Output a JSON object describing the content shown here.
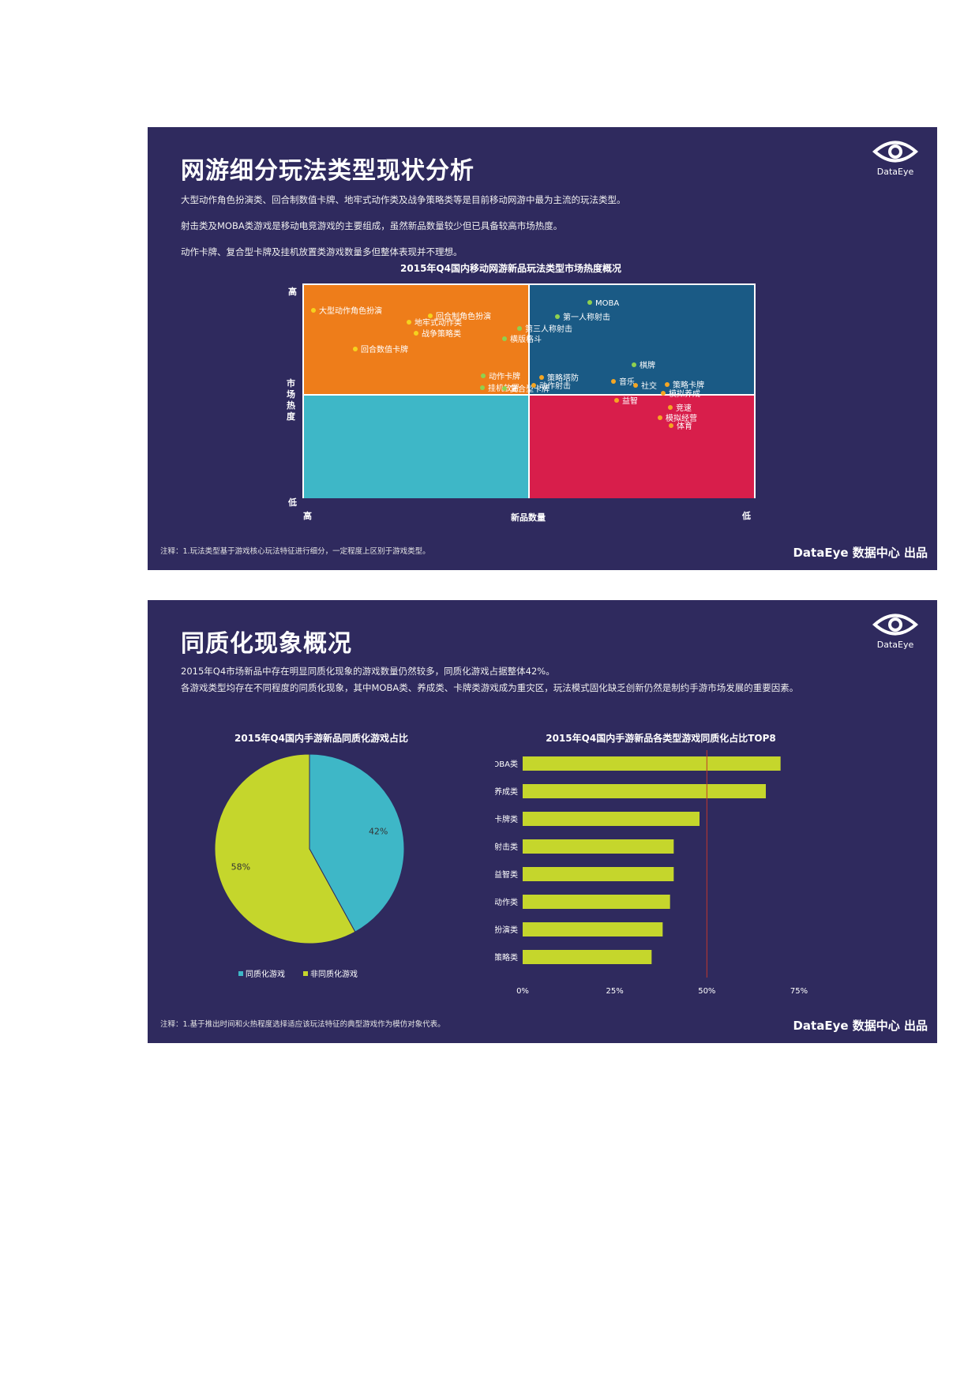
{
  "slide1": {
    "title": "网游细分玩法类型现状分析",
    "desc": [
      "大型动作角色扮演类、回合制数值卡牌、地牢式动作类及战争策略类等是目前移动网游中最为主流的玩法类型。",
      "射击类及MOBA类游戏是移动电竞游戏的主要组成，虽然新品数量较少但已具备较高市场热度。",
      "动作卡牌、复合型卡牌及挂机放置类游戏数量多但整体表现并不理想。"
    ],
    "logo_text": "DataEye",
    "chart_title": "2015年Q4国内移动网游新品玩法类型市场热度概况",
    "y_axis_label": "市场热度",
    "y_high": "高",
    "y_low": "低",
    "x_axis_label": "新品数量",
    "x_left": "高",
    "x_right": "低",
    "quadrant_colors": {
      "top_left": "#ee7d1a",
      "top_right": "#1a5a85",
      "bottom_left": "#3eb7c7",
      "bottom_right": "#d81e4b"
    },
    "points": [
      {
        "label": "大型动作角色扮演",
        "color": "#f5d21e"
      },
      {
        "label": "回合制角色扮演",
        "color": "#f5d21e"
      },
      {
        "label": "地牢式动作类",
        "color": "#f5d21e"
      },
      {
        "label": "战争策略类",
        "color": "#f5d21e"
      },
      {
        "label": "回合数值卡牌",
        "color": "#f5d21e"
      },
      {
        "label": "MOBA",
        "color": "#8fd14f"
      },
      {
        "label": "第一人称射击",
        "color": "#8fd14f"
      },
      {
        "label": "第三人称射击",
        "color": "#8fd14f"
      },
      {
        "label": "横版格斗",
        "color": "#8fd14f"
      },
      {
        "label": "动作卡牌",
        "color": "#8fd14f"
      },
      {
        "label": "挂机放置",
        "color": "#8fd14f"
      },
      {
        "label": "复合型卡牌",
        "color": "#8fd14f"
      },
      {
        "label": "棋牌",
        "color": "#8fd14f"
      },
      {
        "label": "策略塔防",
        "color": "#f5a623"
      },
      {
        "label": "动作射击",
        "color": "#f5a623"
      },
      {
        "label": "音乐",
        "color": "#f5a623"
      },
      {
        "label": "社交",
        "color": "#f5a623"
      },
      {
        "label": "策略卡牌",
        "color": "#f5a623"
      },
      {
        "label": "模拟养成",
        "color": "#f5a623"
      },
      {
        "label": "益智",
        "color": "#f5a623"
      },
      {
        "label": "竞速",
        "color": "#f5a623"
      },
      {
        "label": "模拟经营",
        "color": "#f5a623"
      },
      {
        "label": "体育",
        "color": "#f5a623"
      }
    ],
    "footnote": "注释：1.玩法类型基于游戏核心玩法特征进行细分，一定程度上区别于游戏类型。",
    "credit": "DataEye 数据中心 出品"
  },
  "slide2": {
    "title": "同质化现象概况",
    "desc": [
      "2015年Q4市场新品中存在明显同质化现象的游戏数量仍然较多，同质化游戏占据整体42%。",
      "各游戏类型均存在不同程度的同质化现象，其中MOBA类、养成类、卡牌类游戏成为重灾区，玩法模式固化缺乏创新仍然是制约手游市场发展的重要因素。"
    ],
    "logo_text": "DataEye",
    "footnote": "注释：1.基于推出时间和火热程度选择适应该玩法特征的典型游戏作为模仿对象代表。",
    "credit": "DataEye 数据中心 出品"
  },
  "chart_data": [
    {
      "type": "pie",
      "title": "2015年Q4国内手游新品同质化游戏占比",
      "slices": [
        {
          "name": "同质化游戏",
          "value": 42,
          "label": "42%",
          "color": "#3eb7c7"
        },
        {
          "name": "非同质化游戏",
          "value": 58,
          "label": "58%",
          "color": "#c5d62c"
        }
      ],
      "legend": "bottom"
    },
    {
      "type": "bar",
      "orientation": "horizontal",
      "title": "2015年Q4国内手游新品各类型游戏同质化占比TOP8",
      "categories": [
        "MOBA类",
        "养成类",
        "卡牌类",
        "射击类",
        "休闲益智类",
        "动作类",
        "角色扮演类",
        "策略类"
      ],
      "values": [
        70,
        66,
        48,
        41,
        41,
        40,
        38,
        35
      ],
      "xlim": [
        0,
        75
      ],
      "x_ticks": [
        "0%",
        "25%",
        "50%",
        "75%"
      ],
      "reference_line": 50,
      "bar_color": "#c5d62c",
      "reference_color": "#c0392b"
    }
  ]
}
